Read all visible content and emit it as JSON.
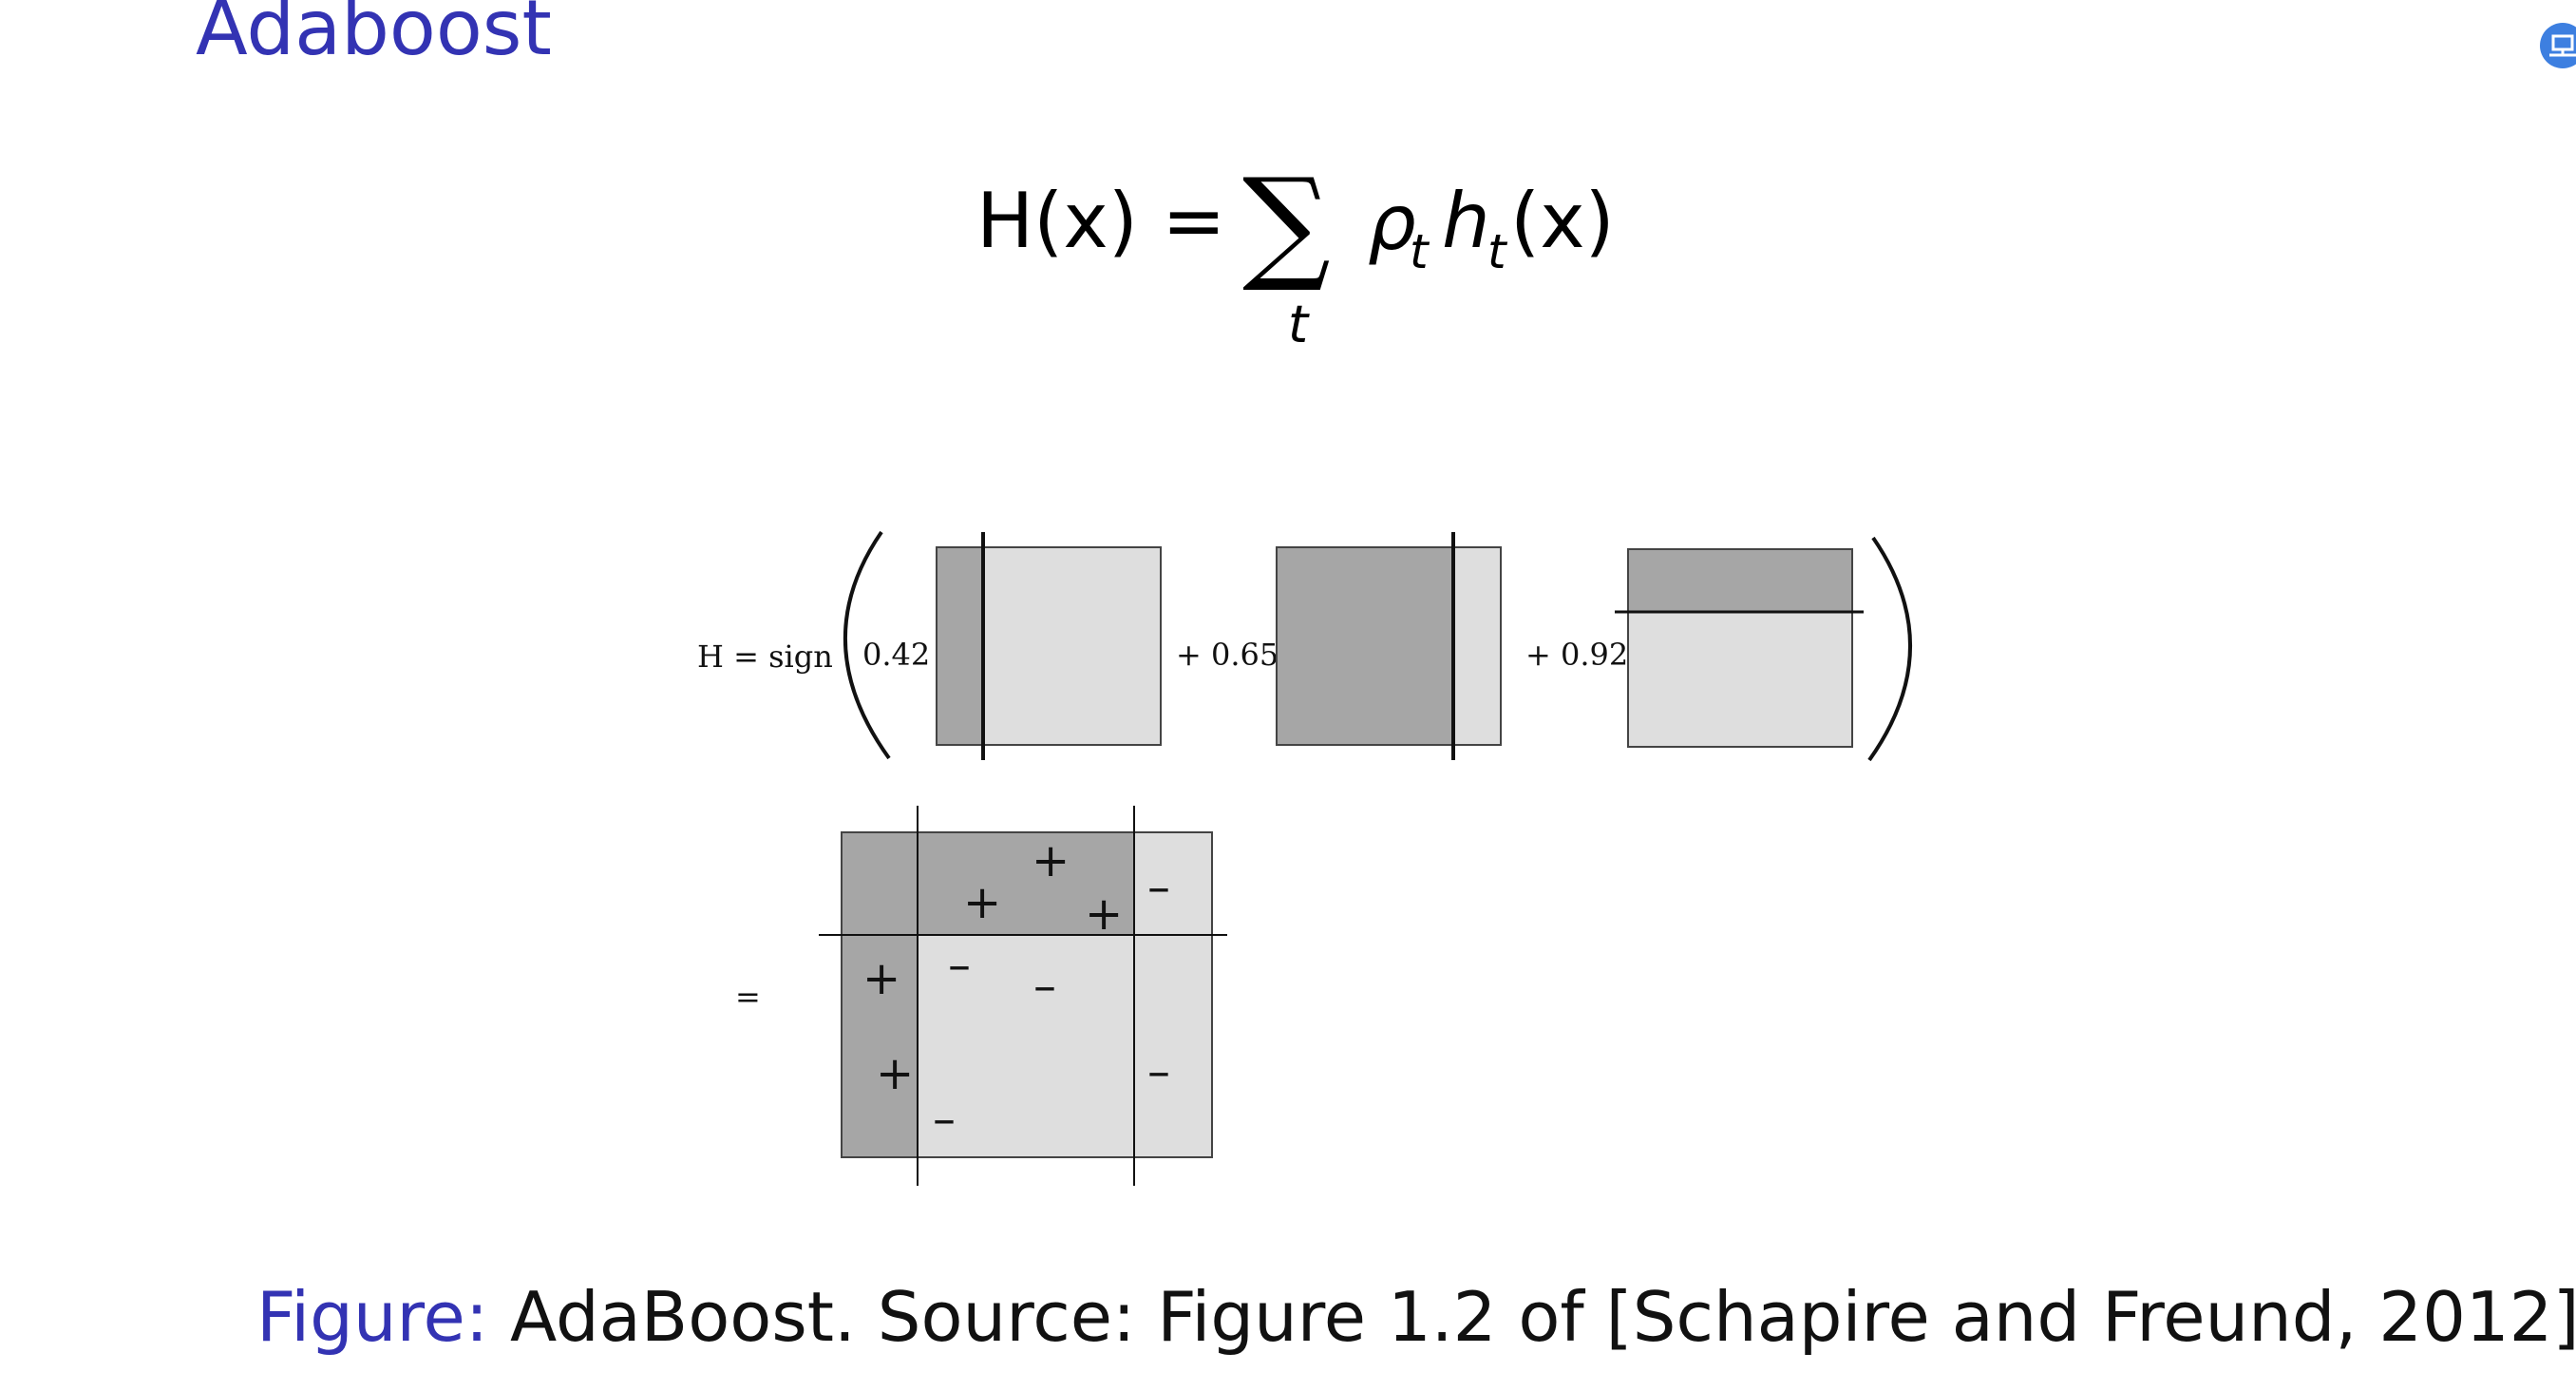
{
  "slide": {
    "title": "Adaboost",
    "nav_icon": "presentation-nav-icon"
  },
  "equation": {
    "lhs": "H(x) =",
    "sum_symbol": "∑",
    "sum_index": "t",
    "weight": "ρ",
    "weight_sub": "t",
    "classifier": "h",
    "classifier_sub": "t",
    "argument": "(x)"
  },
  "diagram": {
    "lhs_label": "H = sign",
    "weights": [
      "0.42",
      "+ 0.65",
      "+ 0.92"
    ],
    "equals_label": "=",
    "plus_sign": "+",
    "minus_sign": "–",
    "colors": {
      "dark_region": "#a6a6a6",
      "light_region": "#dedede",
      "line": "#111111"
    }
  },
  "caption": {
    "prefix": "Figure:",
    "text": " AdaBoost. Source: Figure 1.2 of [Schapire and Freund, 2012]"
  }
}
